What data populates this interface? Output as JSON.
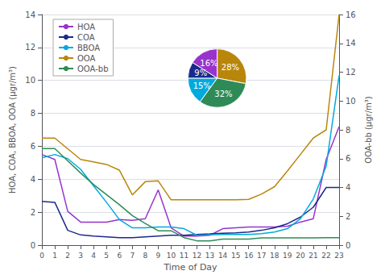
{
  "chart_data": [
    {
      "type": "line",
      "x": [
        0,
        1,
        2,
        3,
        4,
        5,
        6,
        7,
        8,
        9,
        10,
        11,
        12,
        13,
        14,
        15,
        16,
        17,
        18,
        19,
        20,
        21,
        22,
        23
      ],
      "xlabel": "Time of Day",
      "ylabel": "HOA, COA, BBOA, OOA (μgr/m³)",
      "y2label": "OOA-bb (μgr/m³)",
      "xlim": [
        0,
        23
      ],
      "xticks": [
        0,
        1,
        2,
        3,
        4,
        5,
        6,
        7,
        8,
        9,
        10,
        11,
        12,
        13,
        14,
        15,
        16,
        17,
        18,
        19,
        20,
        21,
        22,
        23
      ],
      "ylim": [
        0,
        14
      ],
      "yticks": [
        0,
        2,
        4,
        6,
        8,
        10,
        12,
        14
      ],
      "y2lim": [
        0,
        16
      ],
      "y2ticks": [
        0,
        2,
        4,
        6,
        8,
        10,
        12,
        14,
        16
      ],
      "grid": true,
      "legend": "upper left",
      "series": [
        {
          "name": "HOA",
          "color": "#9933cc",
          "values": [
            5.5,
            5.2,
            2.05,
            1.4,
            1.4,
            1.4,
            1.55,
            1.5,
            1.6,
            3.35,
            1.05,
            0.55,
            0.55,
            0.6,
            1.0,
            1.05,
            1.1,
            1.1,
            1.1,
            1.15,
            1.4,
            1.6,
            5.2,
            7.2
          ]
        },
        {
          "name": "COA",
          "color": "#1a2a8a",
          "values": [
            2.65,
            2.6,
            0.9,
            0.62,
            0.55,
            0.5,
            0.45,
            0.45,
            0.5,
            0.55,
            0.6,
            0.6,
            0.65,
            0.68,
            0.72,
            0.75,
            0.8,
            0.9,
            1.05,
            1.3,
            1.7,
            2.3,
            3.5,
            3.5
          ]
        },
        {
          "name": "BBOA",
          "color": "#00aadd",
          "values": [
            5.3,
            5.5,
            5.25,
            4.6,
            3.6,
            2.6,
            1.55,
            1.05,
            1.05,
            1.1,
            1.1,
            1.0,
            0.6,
            0.62,
            0.65,
            0.65,
            0.65,
            0.7,
            0.8,
            1.0,
            1.6,
            2.8,
            4.8,
            10.3
          ]
        },
        {
          "name": "OOA",
          "color": "#b8860b",
          "values": [
            6.5,
            6.5,
            5.85,
            5.2,
            5.05,
            4.9,
            4.55,
            3.05,
            3.85,
            3.9,
            2.75,
            2.75,
            2.75,
            2.75,
            2.75,
            2.75,
            2.78,
            3.1,
            3.55,
            4.5,
            5.5,
            6.5,
            7.0,
            14.0
          ]
        },
        {
          "name": "OOA-bb",
          "color": "#2e8b57",
          "axis": "y2",
          "values": [
            6.7,
            6.7,
            5.85,
            5.0,
            4.2,
            3.5,
            2.8,
            2.05,
            1.5,
            1.0,
            1.0,
            0.52,
            0.3,
            0.3,
            0.42,
            0.42,
            0.42,
            0.5,
            0.5,
            0.5,
            0.5,
            0.5,
            0.52,
            0.52
          ]
        }
      ]
    },
    {
      "type": "pie",
      "values": [
        28,
        32,
        15,
        9,
        16
      ],
      "value_labels": [
        "28%",
        "32%",
        "15%",
        "9%",
        "16%"
      ],
      "colors": [
        "#b8860b",
        "#2e8b57",
        "#00aadd",
        "#1a2a8a",
        "#9933cc"
      ],
      "data_labels": true
    }
  ]
}
